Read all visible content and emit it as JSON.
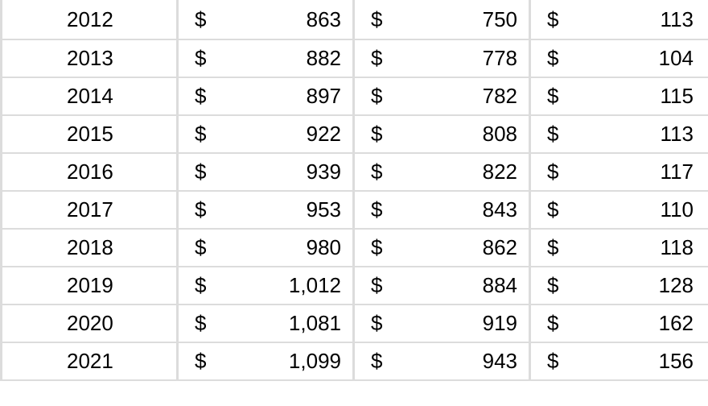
{
  "currency_symbol": "$",
  "rows": [
    {
      "year": "2012",
      "a": "863",
      "b": "750",
      "c": "113"
    },
    {
      "year": "2013",
      "a": "882",
      "b": "778",
      "c": "104"
    },
    {
      "year": "2014",
      "a": "897",
      "b": "782",
      "c": "115"
    },
    {
      "year": "2015",
      "a": "922",
      "b": "808",
      "c": "113"
    },
    {
      "year": "2016",
      "a": "939",
      "b": "822",
      "c": "117"
    },
    {
      "year": "2017",
      "a": "953",
      "b": "843",
      "c": "110"
    },
    {
      "year": "2018",
      "a": "980",
      "b": "862",
      "c": "118"
    },
    {
      "year": "2019",
      "a": "1,012",
      "b": "884",
      "c": "128"
    },
    {
      "year": "2020",
      "a": "1,081",
      "b": "919",
      "c": "162"
    },
    {
      "year": "2021",
      "a": "1,099",
      "b": "943",
      "c": "156"
    }
  ]
}
